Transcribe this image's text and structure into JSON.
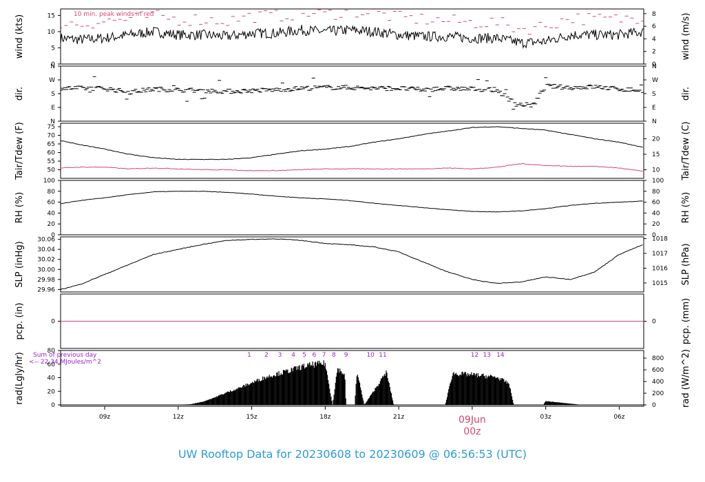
{
  "title": "UW Rooftop Data for 20230608  to  20230609 @ 06:56:53  (UTC)",
  "x_axis": {
    "ticks": [
      "09z",
      "12z",
      "15z",
      "18z",
      "21z",
      "00z",
      "03z",
      "06z"
    ],
    "tick_hours": [
      9,
      12,
      15,
      18,
      21,
      24,
      27,
      30
    ],
    "range_hours": [
      7.2,
      31.0
    ],
    "day_marker": {
      "hour": 24,
      "line1": "09Jun",
      "line2": "00z"
    }
  },
  "colors": {
    "series": "#000000",
    "peak": "#d6446a",
    "dew": "#d6446a",
    "precip": "#d6446a",
    "note": "#9a1fd0",
    "title": "#2a9bd8"
  },
  "chart_data": [
    {
      "type": "line",
      "ylabel": "wind (kts)",
      "ylabel_right": "wind (m/s)",
      "ylim": [
        0,
        17
      ],
      "left_ticks": [
        0,
        5,
        10,
        15
      ],
      "right_ticks": [
        0,
        2,
        4,
        6,
        8
      ],
      "right_factor": 0.5144,
      "annotation": "10 min. peak winds in red",
      "series": [
        {
          "style": "line",
          "color": "#000000",
          "x": [
            7.2,
            8,
            9,
            10,
            11,
            12,
            13,
            14,
            15,
            16,
            17,
            18,
            19,
            20,
            21,
            22,
            23,
            24,
            25,
            26,
            27,
            28,
            29,
            30,
            31
          ],
          "y": [
            8,
            7.5,
            8,
            9,
            10,
            9,
            9,
            8.5,
            9.5,
            9.5,
            10.5,
            10,
            10.5,
            10,
            9,
            8.5,
            8.5,
            8,
            8,
            6.5,
            7,
            9,
            9,
            9,
            10
          ]
        },
        {
          "style": "dashes",
          "color": "#d6446a",
          "x": [
            7.2,
            8,
            9,
            10,
            11,
            12,
            13,
            14,
            15,
            16,
            17,
            18,
            19,
            20,
            21,
            22,
            23,
            24,
            25,
            26,
            27,
            28,
            29,
            30,
            31
          ],
          "y": [
            12,
            11.5,
            12.5,
            13,
            14,
            13,
            13,
            12.5,
            14,
            14,
            15,
            14.5,
            15.5,
            15,
            13.5,
            13,
            12.5,
            12,
            12,
            10,
            11,
            13.5,
            13,
            13,
            14
          ]
        }
      ]
    },
    {
      "type": "scatter",
      "ylabel": "dir.",
      "ylabel_right": "dir.",
      "ylim": [
        0,
        360
      ],
      "left_ticks": [
        "N",
        "E",
        "S",
        "W",
        "N"
      ],
      "left_tick_values": [
        0,
        90,
        180,
        270,
        360
      ],
      "series": [
        {
          "style": "dashes",
          "color": "#000000",
          "x": [
            7.2,
            8,
            9,
            10,
            11,
            12,
            13,
            14,
            15,
            16,
            17,
            18,
            19,
            20,
            21,
            22,
            23,
            24,
            25,
            25.8,
            26.5,
            27,
            28,
            29,
            30,
            31
          ],
          "y": [
            215,
            215,
            215,
            190,
            210,
            205,
            200,
            195,
            200,
            205,
            215,
            220,
            220,
            215,
            215,
            205,
            215,
            210,
            205,
            110,
            105,
            230,
            220,
            225,
            210,
            200
          ]
        }
      ]
    },
    {
      "type": "line",
      "ylabel": "Tair/Tdew (F)",
      "ylabel_right": "Tair/Tdew (C)",
      "ylim": [
        45,
        77
      ],
      "left_ticks": [
        50,
        55,
        60,
        65,
        70,
        75
      ],
      "right_ticks": [
        10,
        15,
        20
      ],
      "series": [
        {
          "style": "line",
          "color": "#000000",
          "x": [
            7.2,
            8,
            9,
            10,
            11,
            12,
            13,
            14,
            15,
            16,
            17,
            18,
            19,
            20,
            21,
            22,
            23,
            24,
            25,
            26,
            27,
            28,
            29,
            30,
            31
          ],
          "y": [
            67,
            64.5,
            62,
            59,
            57,
            56,
            56,
            56,
            57,
            59,
            61,
            62,
            63.5,
            66,
            68,
            70.5,
            72.5,
            74.5,
            75,
            74,
            73,
            70.5,
            68,
            66,
            63
          ]
        },
        {
          "style": "line",
          "color": "#d6446a",
          "x": [
            7.2,
            8,
            9,
            10,
            11,
            12,
            13,
            14,
            15,
            16,
            17,
            18,
            19,
            20,
            21,
            22,
            23,
            24,
            25,
            26,
            27,
            28,
            29,
            30,
            31
          ],
          "y": [
            51,
            51.5,
            51.5,
            50.5,
            51,
            50.5,
            50,
            50,
            49.5,
            49.5,
            50,
            50.5,
            50.5,
            50.5,
            50.5,
            50.5,
            51,
            50.5,
            51.5,
            53.5,
            52.5,
            52,
            52,
            51,
            49
          ]
        }
      ]
    },
    {
      "type": "line",
      "ylabel": "RH (%)",
      "ylabel_right": "RH (%)",
      "ylim": [
        0,
        100
      ],
      "left_ticks": [
        0,
        20,
        40,
        60,
        80,
        100
      ],
      "right_ticks": [
        0,
        20,
        40,
        60,
        80,
        100
      ],
      "series": [
        {
          "style": "line",
          "color": "#000000",
          "x": [
            7.2,
            8,
            9,
            10,
            11,
            12,
            13,
            14,
            15,
            16,
            17,
            18,
            19,
            20,
            21,
            22,
            23,
            24,
            25,
            26,
            27,
            28,
            29,
            30,
            31
          ],
          "y": [
            57,
            63,
            68,
            74,
            79,
            80,
            80,
            78,
            75,
            71,
            68,
            66,
            63,
            58,
            54,
            50,
            46,
            43,
            42,
            44,
            48,
            54,
            58,
            60,
            62
          ]
        }
      ]
    },
    {
      "type": "line",
      "ylabel": "SLP (inHg)",
      "ylabel_right": "SLP (hPa)",
      "ylim": [
        29.955,
        30.065
      ],
      "left_ticks": [
        29.96,
        29.98,
        30.0,
        30.02,
        30.04,
        30.06
      ],
      "right_ticks": [
        1015,
        1016,
        1017,
        1018
      ],
      "right_factor": 33.8639,
      "series": [
        {
          "style": "line",
          "color": "#000000",
          "x": [
            7.2,
            8,
            9,
            10,
            11,
            12,
            13,
            14,
            15,
            16,
            17,
            18,
            19,
            20,
            21,
            22,
            23,
            24,
            25,
            26,
            27,
            28,
            29,
            30,
            31
          ],
          "y": [
            29.96,
            29.97,
            29.99,
            30.01,
            30.03,
            30.04,
            30.05,
            30.058,
            30.06,
            30.061,
            30.058,
            30.052,
            30.049,
            30.045,
            30.035,
            30.015,
            29.995,
            29.98,
            29.972,
            29.975,
            29.985,
            29.98,
            29.995,
            30.03,
            30.05
          ]
        }
      ]
    },
    {
      "type": "line",
      "ylabel": "pcp. (in)",
      "ylabel_right": "pcp. (mm)",
      "ylim": [
        -0.05,
        0.05
      ],
      "left_ticks": [
        0
      ],
      "right_ticks": [
        0
      ],
      "series": [
        {
          "style": "line",
          "color": "#d6446a",
          "x": [
            7.2,
            31
          ],
          "y": [
            0,
            0
          ]
        }
      ]
    },
    {
      "type": "area",
      "ylabel": "rad(Lgly/hr)",
      "ylabel_right": "rad (W/m^2)",
      "ylim": [
        -2,
        80
      ],
      "left_ticks": [
        0,
        20,
        40,
        60,
        80
      ],
      "right_ticks": [
        0,
        200,
        400,
        600,
        800
      ],
      "right_factor": 11.63,
      "notes": [
        "Sum of previous day",
        "<-- 22.34 MJoules/m^2"
      ],
      "event_labels": [
        "1",
        "2",
        "3",
        "4",
        "5",
        "6",
        "7",
        "8",
        "9",
        "10",
        "11",
        "12",
        "13",
        "14"
      ],
      "event_hours": [
        14.9,
        15.6,
        16.15,
        16.7,
        17.15,
        17.55,
        17.95,
        18.35,
        18.85,
        19.85,
        20.35,
        24.1,
        24.6,
        25.15
      ],
      "series": [
        {
          "style": "area",
          "color": "#000000",
          "x": [
            7.2,
            11.8,
            12.5,
            13,
            13.5,
            14,
            14.5,
            15,
            15.5,
            16,
            16.5,
            17,
            17.5,
            18,
            18.3,
            18.5,
            18.8,
            18.85,
            19.2,
            19.3,
            19.6,
            20.5,
            20.8,
            22.9,
            23.2,
            24,
            24.5,
            25,
            25.5,
            25.7,
            25.75,
            26.9,
            27,
            27.5,
            28,
            28.5,
            31
          ],
          "y": [
            0,
            0,
            1,
            5,
            12,
            20,
            27,
            35,
            43,
            49,
            54,
            60,
            64,
            66,
            0,
            58,
            48,
            0,
            0,
            52,
            0,
            52,
            0,
            0,
            50,
            48,
            46,
            44,
            34,
            0,
            0,
            0,
            6,
            4,
            2,
            0,
            0
          ]
        }
      ]
    }
  ]
}
